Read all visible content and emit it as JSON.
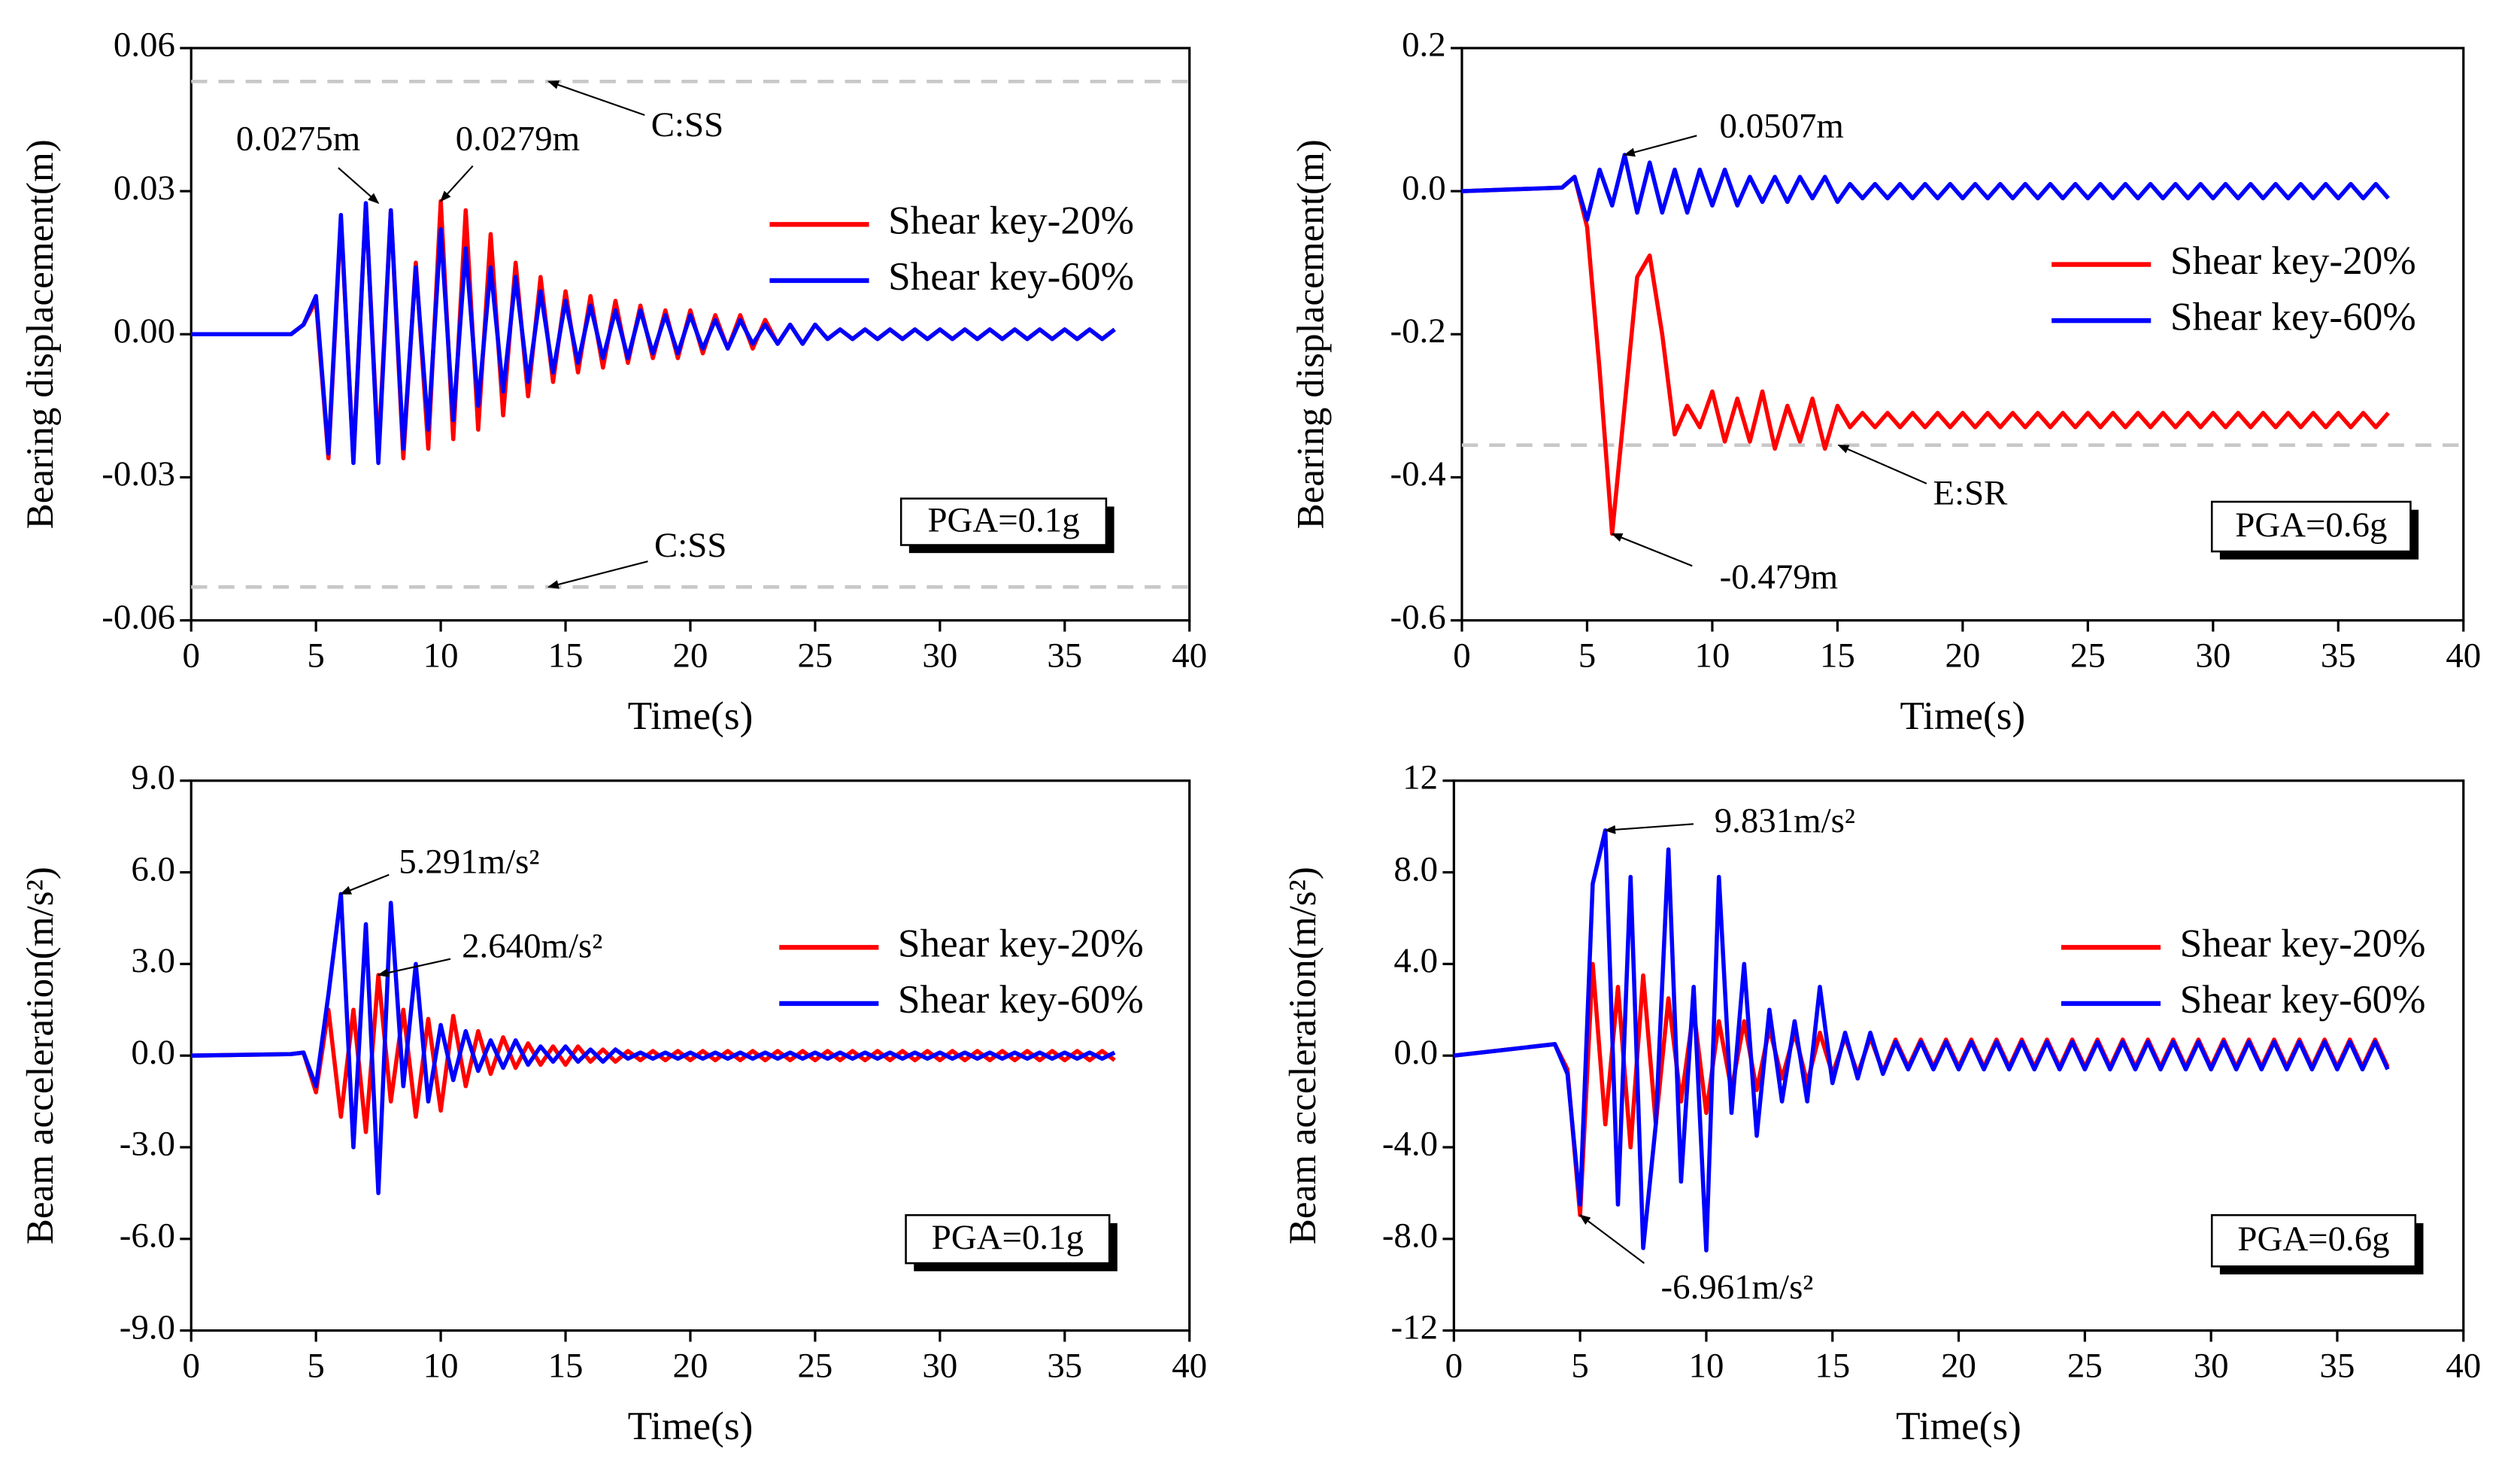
{
  "chart_data": [
    {
      "type": "line",
      "ylabel": "Bearing displacement(m)",
      "xlabel": "Time(s)",
      "x": [
        0,
        4,
        4.5,
        5,
        5.5,
        6,
        6.5,
        7,
        7.5,
        8,
        8.5,
        9,
        9.5,
        10,
        10.5,
        11,
        11.5,
        12,
        12.5,
        13,
        13.5,
        14,
        14.5,
        15,
        15.5,
        16,
        16.5,
        17,
        17.5,
        18,
        18.5,
        19,
        19.5,
        20,
        20.5,
        21,
        21.5,
        22,
        22.5,
        23,
        23.5,
        24,
        24.5,
        25,
        25.5,
        26,
        26.5,
        27,
        27.5,
        28,
        28.5,
        29,
        29.5,
        30,
        30.5,
        31,
        31.5,
        32,
        32.5,
        33,
        33.5,
        34,
        34.5,
        35,
        35.5,
        36,
        36.5,
        37
      ],
      "xlim": [
        0,
        40
      ],
      "xticks": [
        0,
        5,
        10,
        15,
        20,
        25,
        30,
        35,
        40
      ],
      "ylim": [
        -0.06,
        0.06
      ],
      "yticks": [
        -0.06,
        -0.03,
        {
          "value": 0,
          "label": "0.00"
        },
        0.03,
        0.06
      ],
      "legend": "center right",
      "series": [
        {
          "name": "Shear key-20%",
          "color": "#ff0000",
          "values": [
            0,
            0,
            0.002,
            0.007,
            -0.026,
            0.024,
            -0.026,
            0.027,
            -0.025,
            0.026,
            -0.026,
            0.015,
            -0.024,
            0.0279,
            -0.022,
            0.026,
            -0.02,
            0.021,
            -0.017,
            0.015,
            -0.013,
            0.012,
            -0.01,
            0.009,
            -0.008,
            0.008,
            -0.007,
            0.007,
            -0.006,
            0.006,
            -0.005,
            0.005,
            -0.005,
            0.005,
            -0.004,
            0.004,
            -0.003,
            0.004,
            -0.003,
            0.003,
            -0.002,
            0.002,
            -0.002,
            0.002,
            -0.001,
            0.001,
            -0.001,
            0.001,
            -0.001,
            0.001,
            -0.001,
            0.001,
            -0.001,
            0.001,
            -0.001,
            0.001,
            -0.001,
            0.001,
            -0.001,
            0.001,
            -0.001,
            0.001,
            -0.001,
            0.001,
            -0.001,
            0.001,
            -0.001,
            0.001
          ]
        },
        {
          "name": "Shear key-60%",
          "color": "#0000ff",
          "values": [
            0,
            0,
            0.002,
            0.008,
            -0.025,
            0.025,
            -0.027,
            0.0275,
            -0.027,
            0.026,
            -0.024,
            0.014,
            -0.02,
            0.022,
            -0.018,
            0.018,
            -0.015,
            0.014,
            -0.012,
            0.012,
            -0.01,
            0.009,
            -0.008,
            0.007,
            -0.006,
            0.006,
            -0.005,
            0.005,
            -0.005,
            0.005,
            -0.004,
            0.004,
            -0.004,
            0.004,
            -0.003,
            0.003,
            -0.003,
            0.003,
            -0.002,
            0.002,
            -0.002,
            0.002,
            -0.002,
            0.002,
            -0.001,
            0.001,
            -0.001,
            0.001,
            -0.001,
            0.001,
            -0.001,
            0.001,
            -0.001,
            0.001,
            -0.001,
            0.001,
            -0.001,
            0.001,
            -0.001,
            0.001,
            -0.001,
            0.001,
            -0.001,
            0.001,
            -0.001,
            0.001,
            -0.001,
            0.001
          ]
        }
      ],
      "annotations": [
        {
          "text": "0.0275m",
          "x": 7.5,
          "y": 0.0275
        },
        {
          "text": "0.0279m",
          "x": 10,
          "y": 0.0279
        }
      ],
      "reference_lines": [
        {
          "value": 0.053,
          "label": "C:SS"
        },
        {
          "value": -0.053,
          "label": "C:SS"
        }
      ],
      "note": "PGA=0.1g"
    },
    {
      "type": "line",
      "ylabel": "Bearing displacement(m)",
      "xlabel": "Time(s)",
      "x": [
        0,
        4,
        4.5,
        5,
        5.5,
        6,
        6.5,
        7,
        7.5,
        8,
        8.5,
        9,
        9.5,
        10,
        10.5,
        11,
        11.5,
        12,
        12.5,
        13,
        13.5,
        14,
        14.5,
        15,
        15.5,
        16,
        16.5,
        17,
        17.5,
        18,
        18.5,
        19,
        19.5,
        20,
        20.5,
        21,
        21.5,
        22,
        22.5,
        23,
        23.5,
        24,
        24.5,
        25,
        25.5,
        26,
        26.5,
        27,
        27.5,
        28,
        28.5,
        29,
        29.5,
        30,
        30.5,
        31,
        31.5,
        32,
        32.5,
        33,
        33.5,
        34,
        34.5,
        35,
        35.5,
        36,
        36.5,
        37
      ],
      "xlim": [
        0,
        40
      ],
      "xticks": [
        0,
        5,
        10,
        15,
        20,
        25,
        30,
        35,
        40
      ],
      "ylim": [
        -0.6,
        0.2
      ],
      "yticks": [
        -0.6,
        -0.4,
        -0.2,
        {
          "value": 0,
          "label": "0.0"
        },
        0.2
      ],
      "legend": "center right",
      "series": [
        {
          "name": "Shear key-20%",
          "color": "#ff0000",
          "values": [
            0,
            0.005,
            0.02,
            -0.05,
            -0.25,
            -0.479,
            -0.3,
            -0.12,
            -0.09,
            -0.2,
            -0.34,
            -0.3,
            -0.33,
            -0.28,
            -0.35,
            -0.29,
            -0.35,
            -0.28,
            -0.36,
            -0.3,
            -0.35,
            -0.29,
            -0.36,
            -0.3,
            -0.33,
            -0.31,
            -0.33,
            -0.31,
            -0.33,
            -0.31,
            -0.33,
            -0.31,
            -0.33,
            -0.31,
            -0.33,
            -0.31,
            -0.33,
            -0.31,
            -0.33,
            -0.31,
            -0.33,
            -0.31,
            -0.33,
            -0.31,
            -0.33,
            -0.31,
            -0.33,
            -0.31,
            -0.33,
            -0.31,
            -0.33,
            -0.31,
            -0.33,
            -0.31,
            -0.33,
            -0.31,
            -0.33,
            -0.31,
            -0.33,
            -0.31,
            -0.33,
            -0.31,
            -0.33,
            -0.31,
            -0.33,
            -0.31,
            -0.33,
            -0.31
          ]
        },
        {
          "name": "Shear key-60%",
          "color": "#0000ff",
          "values": [
            0,
            0.005,
            0.02,
            -0.04,
            0.03,
            -0.02,
            0.0507,
            -0.03,
            0.04,
            -0.03,
            0.03,
            -0.03,
            0.03,
            -0.02,
            0.03,
            -0.02,
            0.02,
            -0.015,
            0.02,
            -0.015,
            0.02,
            -0.01,
            0.02,
            -0.015,
            0.01,
            -0.01,
            0.01,
            -0.01,
            0.01,
            -0.01,
            0.01,
            -0.01,
            0.01,
            -0.01,
            0.01,
            -0.01,
            0.01,
            -0.01,
            0.01,
            -0.01,
            0.01,
            -0.01,
            0.01,
            -0.01,
            0.01,
            -0.01,
            0.01,
            -0.01,
            0.01,
            -0.01,
            0.01,
            -0.01,
            0.01,
            -0.01,
            0.01,
            -0.01,
            0.01,
            -0.01,
            0.01,
            -0.01,
            0.01,
            -0.01,
            0.01,
            -0.01,
            0.01,
            -0.01,
            0.01,
            -0.01
          ]
        }
      ],
      "annotations": [
        {
          "text": "0.0507m",
          "x": 6.5,
          "y": 0.0507
        },
        {
          "text": "-0.479m",
          "x": 6,
          "y": -0.479
        }
      ],
      "reference_lines": [
        {
          "value": -0.355,
          "label": "E:SR"
        }
      ],
      "note": "PGA=0.6g"
    },
    {
      "type": "line",
      "ylabel": "Beam acceleration(m/s²)",
      "xlabel": "Time(s)",
      "x": [
        0,
        4,
        4.5,
        5,
        5.5,
        6,
        6.5,
        7,
        7.5,
        8,
        8.5,
        9,
        9.5,
        10,
        10.5,
        11,
        11.5,
        12,
        12.5,
        13,
        13.5,
        14,
        14.5,
        15,
        15.5,
        16,
        16.5,
        17,
        17.5,
        18,
        18.5,
        19,
        19.5,
        20,
        20.5,
        21,
        21.5,
        22,
        22.5,
        23,
        23.5,
        24,
        24.5,
        25,
        25.5,
        26,
        26.5,
        27,
        27.5,
        28,
        28.5,
        29,
        29.5,
        30,
        30.5,
        31,
        31.5,
        32,
        32.5,
        33,
        33.5,
        34,
        34.5,
        35,
        35.5,
        36,
        36.5,
        37
      ],
      "xlim": [
        0,
        40
      ],
      "xticks": [
        0,
        5,
        10,
        15,
        20,
        25,
        30,
        35,
        40
      ],
      "ylim": [
        -9,
        9
      ],
      "yticks": [
        {
          "value": -9,
          "label": "-9.0"
        },
        {
          "value": -6,
          "label": "-6.0"
        },
        {
          "value": -3,
          "label": "-3.0"
        },
        {
          "value": 0,
          "label": "0.0"
        },
        {
          "value": 3,
          "label": "3.0"
        },
        {
          "value": 6,
          "label": "6.0"
        },
        {
          "value": 9,
          "label": "9.0"
        }
      ],
      "legend": "center right",
      "series": [
        {
          "name": "Shear key-20%",
          "color": "#ff0000",
          "values": [
            0,
            0.05,
            0.1,
            -1.2,
            1.5,
            -2.0,
            1.5,
            -2.5,
            2.64,
            -1.5,
            1.5,
            -2.0,
            1.2,
            -1.8,
            1.3,
            -1.0,
            0.8,
            -0.6,
            0.6,
            -0.4,
            0.4,
            -0.3,
            0.3,
            -0.3,
            0.3,
            -0.2,
            0.2,
            -0.2,
            0.15,
            -0.15,
            0.15,
            -0.15,
            0.15,
            -0.15,
            0.15,
            -0.15,
            0.15,
            -0.15,
            0.15,
            -0.15,
            0.15,
            -0.15,
            0.15,
            -0.15,
            0.15,
            -0.15,
            0.15,
            -0.15,
            0.15,
            -0.15,
            0.15,
            -0.15,
            0.15,
            -0.15,
            0.15,
            -0.15,
            0.15,
            -0.15,
            0.15,
            -0.15,
            0.15,
            -0.15,
            0.15,
            -0.15,
            0.15,
            -0.15,
            0.15,
            -0.15
          ]
        },
        {
          "name": "Shear key-60%",
          "color": "#0000ff",
          "values": [
            0,
            0.05,
            0.1,
            -1.0,
            2.0,
            5.291,
            -3.0,
            4.3,
            -4.5,
            5.0,
            -1.0,
            3.0,
            -1.5,
            1.0,
            -0.8,
            0.8,
            -0.5,
            0.5,
            -0.4,
            0.5,
            -0.3,
            0.3,
            -0.2,
            0.3,
            -0.2,
            0.2,
            -0.2,
            0.2,
            -0.1,
            0.1,
            -0.1,
            0.1,
            -0.1,
            0.1,
            -0.1,
            0.1,
            -0.1,
            0.1,
            -0.1,
            0.1,
            -0.1,
            0.1,
            -0.1,
            0.1,
            -0.1,
            0.1,
            -0.1,
            0.1,
            -0.1,
            0.1,
            -0.1,
            0.1,
            -0.1,
            0.1,
            -0.1,
            0.1,
            -0.1,
            0.1,
            -0.1,
            0.1,
            -0.1,
            0.1,
            -0.1,
            0.1,
            -0.1,
            0.1,
            -0.1,
            0.1
          ]
        }
      ],
      "annotations": [
        {
          "text": "5.291m/s²",
          "x": 6,
          "y": 5.291
        },
        {
          "text": "2.640m/s²",
          "x": 7.5,
          "y": 2.64
        }
      ],
      "reference_lines": [],
      "note": "PGA=0.1g"
    },
    {
      "type": "line",
      "ylabel": "Beam acceleration(m/s²)",
      "xlabel": "Time(s)",
      "x": [
        0,
        4,
        4.5,
        5,
        5.5,
        6,
        6.5,
        7,
        7.5,
        8,
        8.5,
        9,
        9.5,
        10,
        10.5,
        11,
        11.5,
        12,
        12.5,
        13,
        13.5,
        14,
        14.5,
        15,
        15.5,
        16,
        16.5,
        17,
        17.5,
        18,
        18.5,
        19,
        19.5,
        20,
        20.5,
        21,
        21.5,
        22,
        22.5,
        23,
        23.5,
        24,
        24.5,
        25,
        25.5,
        26,
        26.5,
        27,
        27.5,
        28,
        28.5,
        29,
        29.5,
        30,
        30.5,
        31,
        31.5,
        32,
        32.5,
        33,
        33.5,
        34,
        34.5,
        35,
        35.5,
        36,
        36.5,
        37
      ],
      "xlim": [
        0,
        40
      ],
      "xticks": [
        0,
        5,
        10,
        15,
        20,
        25,
        30,
        35,
        40
      ],
      "ylim": [
        -12,
        12
      ],
      "yticks": [
        -12,
        {
          "value": -8,
          "label": "-8.0"
        },
        {
          "value": -4,
          "label": "-4.0"
        },
        {
          "value": 0,
          "label": "0.0"
        },
        {
          "value": 4,
          "label": "4.0"
        },
        {
          "value": 8,
          "label": "8.0"
        },
        12
      ],
      "legend": "center right",
      "series": [
        {
          "name": "Shear key-20%",
          "color": "#ff0000",
          "values": [
            0,
            0.5,
            -0.6,
            -6.961,
            4.0,
            -3.0,
            3.0,
            -4.0,
            3.5,
            -3.0,
            2.5,
            -2.0,
            2.0,
            -2.5,
            1.5,
            -1.5,
            1.5,
            -1.5,
            1.2,
            -1.0,
            1.0,
            -1.2,
            1.0,
            -0.8,
            0.8,
            -0.8,
            0.8,
            -0.7,
            0.7,
            -0.5,
            0.7,
            -0.5,
            0.7,
            -0.5,
            0.7,
            -0.5,
            0.7,
            -0.5,
            0.7,
            -0.5,
            0.7,
            -0.5,
            0.7,
            -0.5,
            0.7,
            -0.5,
            0.7,
            -0.5,
            0.7,
            -0.5,
            0.7,
            -0.5,
            0.7,
            -0.5,
            0.7,
            -0.5,
            0.7,
            -0.5,
            0.7,
            -0.5,
            0.7,
            -0.5,
            0.7,
            -0.5,
            0.7,
            -0.5,
            0.7,
            -0.5
          ]
        },
        {
          "name": "Shear key-60%",
          "color": "#0000ff",
          "values": [
            0,
            0.5,
            -0.8,
            -6.5,
            7.5,
            9.831,
            -6.5,
            7.8,
            -8.4,
            -3,
            9.0,
            -5.5,
            3.0,
            -8.5,
            7.8,
            -2.5,
            4.0,
            -3.5,
            2.0,
            -2.0,
            1.5,
            -2.0,
            3.0,
            -1.2,
            1.0,
            -1.0,
            1.0,
            -0.8,
            0.6,
            -0.6,
            0.6,
            -0.6,
            0.6,
            -0.6,
            0.6,
            -0.6,
            0.6,
            -0.6,
            0.6,
            -0.6,
            0.6,
            -0.6,
            0.6,
            -0.6,
            0.6,
            -0.6,
            0.6,
            -0.6,
            0.6,
            -0.6,
            0.6,
            -0.6,
            0.6,
            -0.6,
            0.6,
            -0.6,
            0.6,
            -0.6,
            0.6,
            -0.6,
            0.6,
            -0.6,
            0.6,
            -0.6,
            0.6,
            -0.6,
            0.6,
            -0.6
          ]
        }
      ],
      "annotations": [
        {
          "text": "9.831m/s²",
          "x": 6,
          "y": 9.831
        },
        {
          "text": "-6.961m/s²",
          "x": 5,
          "y": -6.961
        }
      ],
      "reference_lines": [],
      "note": "PGA=0.6g"
    }
  ]
}
